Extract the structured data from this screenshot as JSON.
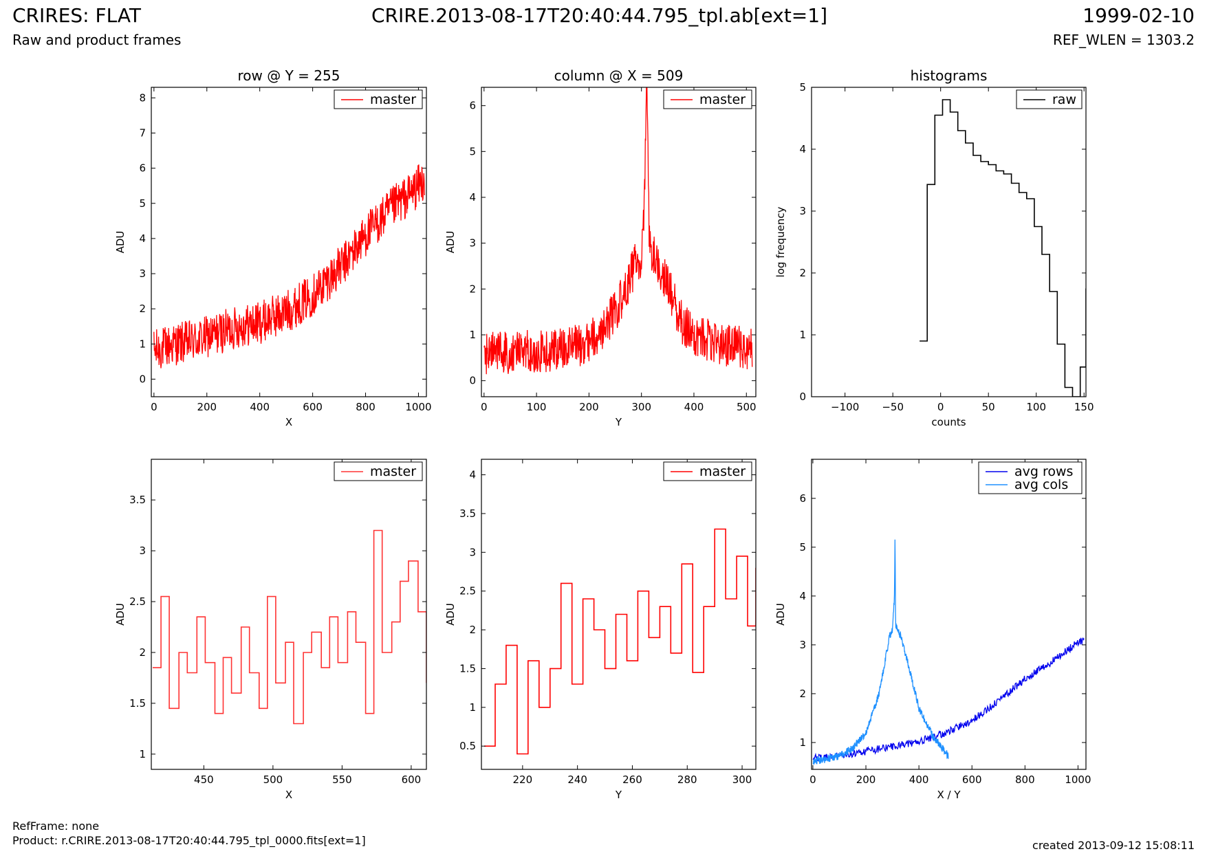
{
  "header": {
    "title_left": "CRIRES: FLAT",
    "title_center": "CRIRE.2013-08-17T20:40:44.795_tpl.ab[ext=1]",
    "title_right": "1999-02-10",
    "subtitle_left": "Raw and product frames",
    "subtitle_right": "REF_WLEN = 1303.2"
  },
  "footer": {
    "ref_frame": "RefFrame: none",
    "product": "Product: r.CRIRE.2013-08-17T20:40:44.795_tpl_0000.fits[ext=1]",
    "created": "created 2013-09-12 15:08:11"
  },
  "colors": {
    "red": "#ff0000",
    "red_light": "#ff3333",
    "dark_blue": "#0000ee",
    "light_blue": "#1e90ff",
    "black": "#000000"
  },
  "chart_data": [
    {
      "id": "row",
      "type": "line",
      "title": "row @ Y = 255",
      "xlabel": "X",
      "ylabel": "ADU",
      "xlim": [
        -10,
        1030
      ],
      "ylim": [
        -0.5,
        8.3
      ],
      "xticks": [
        0,
        200,
        400,
        600,
        800,
        1000
      ],
      "yticks": [
        0,
        1,
        2,
        3,
        4,
        5,
        6,
        7,
        8
      ],
      "legend": "top-right",
      "grid": false,
      "series": [
        {
          "name": "master",
          "color": "#ff0000",
          "step": false,
          "x": [
            0,
            40,
            80,
            120,
            160,
            200,
            240,
            280,
            320,
            360,
            400,
            440,
            480,
            520,
            560,
            600,
            640,
            680,
            720,
            760,
            800,
            840,
            880,
            920,
            960,
            1000,
            1023
          ],
          "y": [
            0.8,
            0.9,
            1.0,
            1.05,
            1.1,
            1.2,
            1.3,
            1.4,
            1.5,
            1.55,
            1.6,
            1.75,
            1.85,
            2.0,
            2.2,
            2.4,
            2.7,
            3.0,
            3.3,
            3.7,
            4.1,
            4.4,
            4.7,
            5.0,
            5.2,
            5.5,
            5.7
          ]
        }
      ]
    },
    {
      "id": "column",
      "type": "line",
      "title": "column @ X = 509",
      "xlabel": "Y",
      "ylabel": "ADU",
      "xlim": [
        -5,
        518
      ],
      "ylim": [
        -0.35,
        6.4
      ],
      "xticks": [
        0,
        100,
        200,
        300,
        400,
        500
      ],
      "yticks": [
        0,
        1,
        2,
        3,
        4,
        5,
        6
      ],
      "legend": "top-right",
      "grid": false,
      "series": [
        {
          "name": "master",
          "color": "#ff0000",
          "step": false,
          "x": [
            0,
            25,
            50,
            75,
            100,
            125,
            150,
            175,
            200,
            225,
            250,
            270,
            290,
            300,
            305,
            310,
            315,
            330,
            350,
            375,
            400,
            425,
            450,
            475,
            500,
            511
          ],
          "y": [
            0.6,
            0.62,
            0.6,
            0.65,
            0.65,
            0.65,
            0.7,
            0.75,
            0.85,
            1.1,
            1.5,
            2.0,
            2.6,
            2.7,
            3.6,
            6.4,
            3.0,
            2.6,
            2.1,
            1.3,
            1.0,
            0.9,
            0.8,
            0.75,
            0.7,
            0.7
          ]
        }
      ]
    },
    {
      "id": "histograms",
      "type": "line",
      "title": "histograms",
      "xlabel": "counts",
      "ylabel": "log frequency",
      "xlim": [
        -135,
        152
      ],
      "ylim": [
        0,
        5
      ],
      "xticks": [
        -100,
        -50,
        0,
        50,
        100,
        150
      ],
      "yticks": [
        0,
        1,
        2,
        3,
        4,
        5
      ],
      "legend": "top-right",
      "grid": false,
      "series": [
        {
          "name": "raw",
          "color": "#000000",
          "step": true,
          "x": [
            -22,
            -14,
            -6,
            2,
            10,
            18,
            26,
            34,
            42,
            50,
            58,
            66,
            74,
            82,
            90,
            98,
            106,
            114,
            122,
            130,
            138,
            146,
            152
          ],
          "y": [
            0.9,
            3.43,
            4.55,
            4.8,
            4.6,
            4.3,
            4.1,
            3.9,
            3.8,
            3.75,
            3.65,
            3.6,
            3.45,
            3.3,
            3.2,
            2.75,
            2.3,
            1.7,
            0.85,
            0.15,
            0,
            0.48,
            1.75
          ]
        }
      ]
    },
    {
      "id": "row-zoom",
      "type": "line",
      "title": "",
      "xlabel": "X",
      "ylabel": "ADU",
      "xlim": [
        412,
        611
      ],
      "ylim": [
        0.85,
        3.9
      ],
      "xticks": [
        450,
        500,
        550,
        600
      ],
      "yticks": [
        1.0,
        1.5,
        2.0,
        2.5,
        3.0,
        3.5
      ],
      "legend": "top-right",
      "grid": false,
      "series": [
        {
          "name": "master",
          "color": "#ff3333",
          "step": true,
          "x": [
            413,
            419,
            425,
            432,
            438,
            445,
            451,
            458,
            464,
            470,
            477,
            483,
            490,
            496,
            502,
            509,
            515,
            522,
            528,
            535,
            541,
            547,
            554,
            560,
            567,
            573,
            579,
            586,
            592,
            598,
            605,
            611
          ],
          "y": [
            1.85,
            2.55,
            1.45,
            2.0,
            1.8,
            2.35,
            1.9,
            1.4,
            1.95,
            1.6,
            2.25,
            1.8,
            1.45,
            2.55,
            1.7,
            2.1,
            1.3,
            2.0,
            2.2,
            1.85,
            2.35,
            1.9,
            2.4,
            2.1,
            1.4,
            3.2,
            2.0,
            2.3,
            2.7,
            2.9,
            2.4,
            1.7
          ]
        }
      ]
    },
    {
      "id": "column-zoom",
      "type": "line",
      "title": "",
      "xlabel": "Y",
      "ylabel": "ADU",
      "xlim": [
        205,
        305
      ],
      "ylim": [
        0.2,
        4.2
      ],
      "xticks": [
        220,
        240,
        260,
        280,
        300
      ],
      "yticks": [
        0.5,
        1.0,
        1.5,
        2.0,
        2.5,
        3.0,
        3.5,
        4.0
      ],
      "legend": "top-right",
      "grid": false,
      "series": [
        {
          "name": "master",
          "color": "#ff0000",
          "step": true,
          "x": [
            206,
            210,
            214,
            218,
            222,
            226,
            230,
            234,
            238,
            242,
            246,
            250,
            254,
            258,
            262,
            266,
            270,
            274,
            278,
            282,
            286,
            290,
            294,
            298,
            302,
            305
          ],
          "y": [
            0.5,
            1.3,
            1.8,
            0.4,
            1.6,
            1.0,
            1.5,
            2.6,
            1.3,
            2.4,
            2.0,
            1.5,
            2.2,
            1.6,
            2.5,
            1.9,
            2.3,
            1.7,
            2.85,
            1.45,
            2.3,
            3.3,
            2.4,
            2.95,
            2.05,
            2.8
          ]
        }
      ]
    },
    {
      "id": "averages",
      "type": "line",
      "title": "",
      "xlabel": "X / Y",
      "ylabel": "ADU",
      "xlim": [
        -5,
        1030
      ],
      "ylim": [
        0.45,
        6.8
      ],
      "xticks": [
        0,
        200,
        400,
        600,
        800,
        1000
      ],
      "yticks": [
        1,
        2,
        3,
        4,
        5,
        6
      ],
      "legend": "top-right",
      "grid": false,
      "series": [
        {
          "name": "avg rows",
          "color": "#0000ee",
          "step": false,
          "x": [
            0,
            100,
            200,
            300,
            400,
            500,
            600,
            700,
            800,
            900,
            1000,
            1023
          ],
          "y": [
            0.68,
            0.72,
            0.82,
            0.92,
            1.02,
            1.2,
            1.45,
            1.85,
            2.3,
            2.65,
            3.05,
            3.1
          ]
        },
        {
          "name": "avg cols",
          "color": "#1e90ff",
          "step": false,
          "x": [
            0,
            50,
            100,
            150,
            200,
            250,
            290,
            300,
            308,
            310,
            312,
            330,
            360,
            400,
            450,
            511
          ],
          "y": [
            0.62,
            0.66,
            0.72,
            0.88,
            1.2,
            2.0,
            3.2,
            3.3,
            4.0,
            5.4,
            3.4,
            3.2,
            2.6,
            1.7,
            1.15,
            0.72
          ]
        }
      ]
    }
  ]
}
